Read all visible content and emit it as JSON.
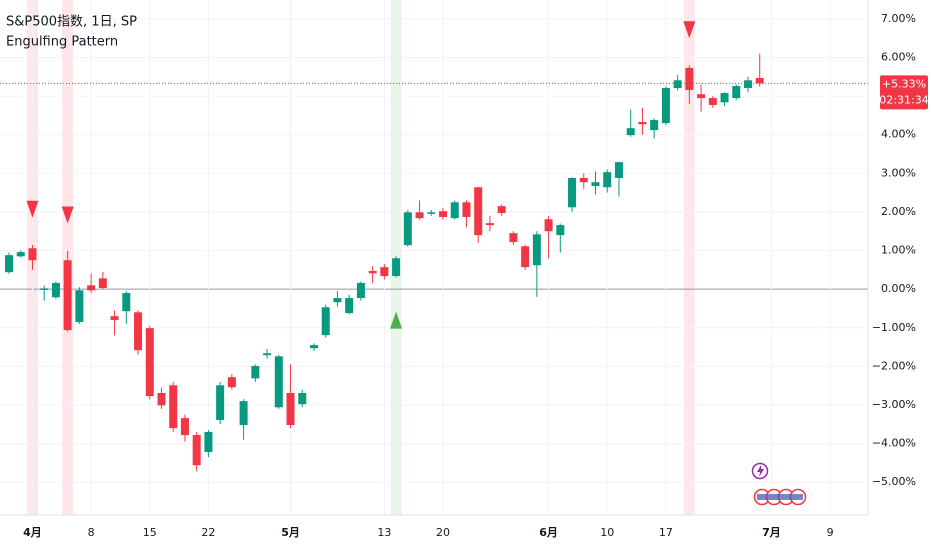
{
  "chart_data": {
    "type": "candlestick",
    "title": "S&P500指数, 1日, SP",
    "subtitle": "Engulfing Pattern",
    "categories": [
      null,
      null,
      "4月",
      null,
      null,
      null,
      null,
      "8",
      null,
      null,
      null,
      null,
      "15",
      null,
      null,
      null,
      null,
      "22",
      null,
      null,
      null,
      null,
      null,
      null,
      "5月",
      null,
      null,
      null,
      null,
      null,
      null,
      null,
      "13",
      null,
      null,
      null,
      null,
      "20",
      null,
      null,
      null,
      null,
      null,
      null,
      null,
      null,
      "6月",
      null,
      null,
      null,
      null,
      "10",
      null,
      null,
      null,
      null,
      "17",
      null,
      null,
      null,
      null,
      null,
      null,
      null,
      null,
      "7月",
      null,
      null,
      null,
      null,
      "9"
    ],
    "open": [
      0.44,
      0.85,
      1.06,
      -0.02,
      -0.21,
      0.75,
      -0.85,
      0.1,
      0.28,
      -0.7,
      -0.57,
      -0.6,
      -1.01,
      -2.69,
      -2.49,
      -3.34,
      -3.78,
      -4.22,
      -3.39,
      -2.28,
      -3.52,
      -2.31,
      -1.71,
      -3.06,
      -2.69,
      -2.98,
      -1.53,
      -1.19,
      -0.34,
      -0.62,
      -0.23,
      0.47,
      0.57,
      0.34,
      1.14,
      1.99,
      1.95,
      2.02,
      1.84,
      2.25,
      2.64,
      1.71,
      2.15,
      1.45,
      1.11,
      0.62,
      1.81,
      1.4,
      2.12,
      2.88,
      2.67,
      2.64,
      2.88,
      3.99,
      4.33,
      4.12,
      4.3,
      5.21,
      5.73,
      5.05,
      4.95,
      4.84,
      4.95,
      5.21,
      5.47,
      null,
      null,
      null,
      null,
      null,
      null
    ],
    "high": [
      0.95,
      1.0,
      1.15,
      0.1,
      0.2,
      1.0,
      0.05,
      0.4,
      0.45,
      -0.55,
      -0.05,
      -0.55,
      -0.95,
      -2.55,
      -2.4,
      -3.25,
      -3.7,
      -3.65,
      -2.4,
      -2.2,
      -2.85,
      -1.95,
      -1.55,
      -1.7,
      -1.95,
      -2.6,
      -1.4,
      -0.4,
      -0.05,
      -0.15,
      0.2,
      0.6,
      0.65,
      0.85,
      2.05,
      2.3,
      2.05,
      2.1,
      2.3,
      2.3,
      2.65,
      1.9,
      2.2,
      1.5,
      1.15,
      1.5,
      1.9,
      1.7,
      2.9,
      3.0,
      3.05,
      3.1,
      3.3,
      4.65,
      4.7,
      4.42,
      5.25,
      5.55,
      5.8,
      5.3,
      5.0,
      5.1,
      5.3,
      5.5,
      6.1,
      null,
      null,
      null,
      null,
      null,
      null
    ],
    "low": [
      0.4,
      0.82,
      0.5,
      -0.3,
      -0.25,
      -1.1,
      -0.9,
      -0.1,
      0.0,
      -1.2,
      -0.9,
      -1.7,
      -2.85,
      -3.1,
      -3.7,
      -3.95,
      -4.72,
      -4.35,
      -3.5,
      -2.6,
      -3.9,
      -2.4,
      -1.8,
      -3.1,
      -3.6,
      -3.05,
      -1.6,
      -1.25,
      -0.45,
      -0.65,
      -0.3,
      0.15,
      0.25,
      0.3,
      1.1,
      1.8,
      1.9,
      1.8,
      1.8,
      1.6,
      1.2,
      1.5,
      1.9,
      1.15,
      0.5,
      -0.2,
      0.8,
      0.95,
      2.0,
      2.6,
      2.45,
      2.5,
      2.4,
      3.95,
      4.0,
      3.9,
      4.25,
      5.15,
      4.8,
      4.6,
      4.7,
      4.75,
      4.9,
      5.1,
      5.25,
      null,
      null,
      null,
      null,
      null,
      null
    ],
    "close": [
      0.88,
      0.96,
      0.75,
      0.02,
      0.16,
      -1.06,
      -0.03,
      -0.03,
      0.03,
      -0.8,
      -0.1,
      -1.58,
      -2.77,
      -3.01,
      -3.6,
      -3.78,
      -4.56,
      -3.7,
      -2.49,
      -2.54,
      -2.9,
      -1.99,
      -1.66,
      -1.74,
      -3.52,
      -2.69,
      -1.45,
      -0.47,
      -0.23,
      -0.23,
      0.16,
      0.41,
      0.34,
      0.8,
      1.99,
      1.84,
      1.99,
      1.87,
      2.25,
      1.87,
      1.4,
      1.66,
      1.97,
      1.22,
      0.57,
      1.42,
      1.5,
      1.66,
      2.88,
      2.77,
      2.77,
      3.03,
      3.29,
      4.17,
      4.27,
      4.38,
      5.21,
      5.41,
      5.16,
      4.95,
      4.77,
      5.08,
      5.26,
      5.41,
      5.33,
      null,
      null,
      null,
      null,
      null,
      null
    ],
    "up_color": "#089981",
    "down_color": "#f23645",
    "markers": {
      "bearish": [
        2,
        5,
        58
      ],
      "bullish": [
        33
      ],
      "bearish_color": "#f23645",
      "bullish_color": "#4caf50"
    },
    "last_label": {
      "value": 5.33,
      "label": "+5.33%",
      "countdown": "02:31:34"
    },
    "ylim": [
      -5.85,
      7.49
    ],
    "yticks": [
      {
        "value": 7,
        "label": "7.00%"
      },
      {
        "value": 6,
        "label": "6.00%"
      },
      {
        "value": 5,
        "label": "5.00%"
      },
      {
        "value": 4,
        "label": "4.00%"
      },
      {
        "value": 3,
        "label": "3.00%"
      },
      {
        "value": 2,
        "label": "2.00%"
      },
      {
        "value": 1,
        "label": "1.00%"
      },
      {
        "value": 0,
        "label": "0.00%"
      },
      {
        "value": -1,
        "label": "−1.00%"
      },
      {
        "value": -2,
        "label": "−2.00%"
      },
      {
        "value": -3,
        "label": "−3.00%"
      },
      {
        "value": -4,
        "label": "−4.00%"
      },
      {
        "value": -5,
        "label": "−5.00%"
      }
    ],
    "grid": true
  }
}
